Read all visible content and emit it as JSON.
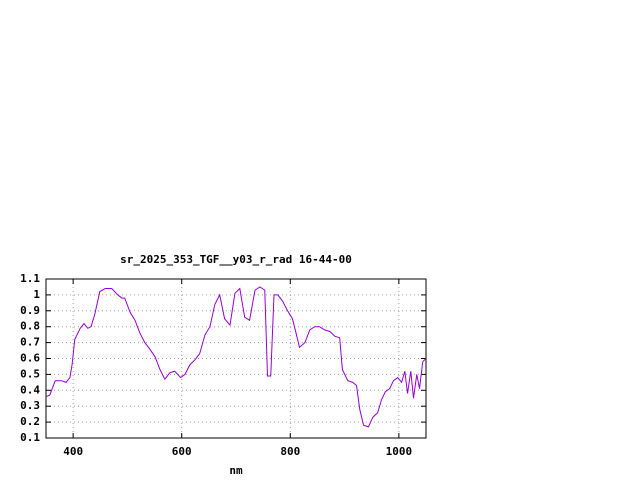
{
  "chart_data": {
    "type": "line",
    "title": "sr_2025_353_TGF__y03_r_rad 16-44-00",
    "x_label": "nm",
    "x": [
      350,
      357,
      367,
      379,
      387,
      394,
      398,
      403,
      413,
      420,
      427,
      433,
      440,
      449,
      459,
      471,
      482,
      490,
      495,
      505,
      514,
      523,
      532,
      541,
      551,
      560,
      569,
      578,
      587,
      598,
      606,
      615,
      624,
      633,
      643,
      652,
      661,
      670,
      679,
      689,
      698,
      707,
      716,
      725,
      735,
      744,
      753,
      758,
      764,
      770,
      777,
      786,
      795,
      804,
      812,
      817,
      827,
      836,
      845,
      854,
      863,
      873,
      882,
      891,
      896,
      906,
      915,
      922,
      928,
      935,
      944,
      952,
      961,
      968,
      975,
      983,
      990,
      998,
      1005,
      1011,
      1016,
      1022,
      1027,
      1033,
      1038,
      1044,
      1050
    ],
    "series": [
      {
        "color": "#9400d3",
        "values": [
          0.36,
          0.37,
          0.46,
          0.46,
          0.45,
          0.48,
          0.56,
          0.72,
          0.79,
          0.82,
          0.79,
          0.8,
          0.88,
          1.02,
          1.04,
          1.04,
          1.0,
          0.98,
          0.98,
          0.89,
          0.84,
          0.76,
          0.7,
          0.66,
          0.61,
          0.53,
          0.47,
          0.51,
          0.52,
          0.48,
          0.5,
          0.56,
          0.59,
          0.63,
          0.75,
          0.8,
          0.94,
          1.0,
          0.85,
          0.81,
          1.01,
          1.04,
          0.86,
          0.84,
          1.03,
          1.05,
          1.03,
          0.49,
          0.49,
          1.0,
          1.0,
          0.96,
          0.9,
          0.85,
          0.74,
          0.67,
          0.7,
          0.78,
          0.8,
          0.8,
          0.78,
          0.77,
          0.74,
          0.73,
          0.53,
          0.46,
          0.45,
          0.43,
          0.28,
          0.18,
          0.17,
          0.23,
          0.26,
          0.34,
          0.39,
          0.41,
          0.46,
          0.48,
          0.45,
          0.52,
          0.38,
          0.52,
          0.35,
          0.5,
          0.41,
          0.58,
          0.6
        ]
      }
    ],
    "xlim": [
      350,
      1050
    ],
    "xticks": [
      400,
      600,
      800,
      1000
    ],
    "ylim": [
      0.1,
      1.1
    ],
    "yticks": [
      0.1,
      0.2,
      0.3,
      0.4,
      0.5,
      0.6,
      0.7,
      0.8,
      0.9,
      1,
      1.1
    ],
    "grid": true
  }
}
